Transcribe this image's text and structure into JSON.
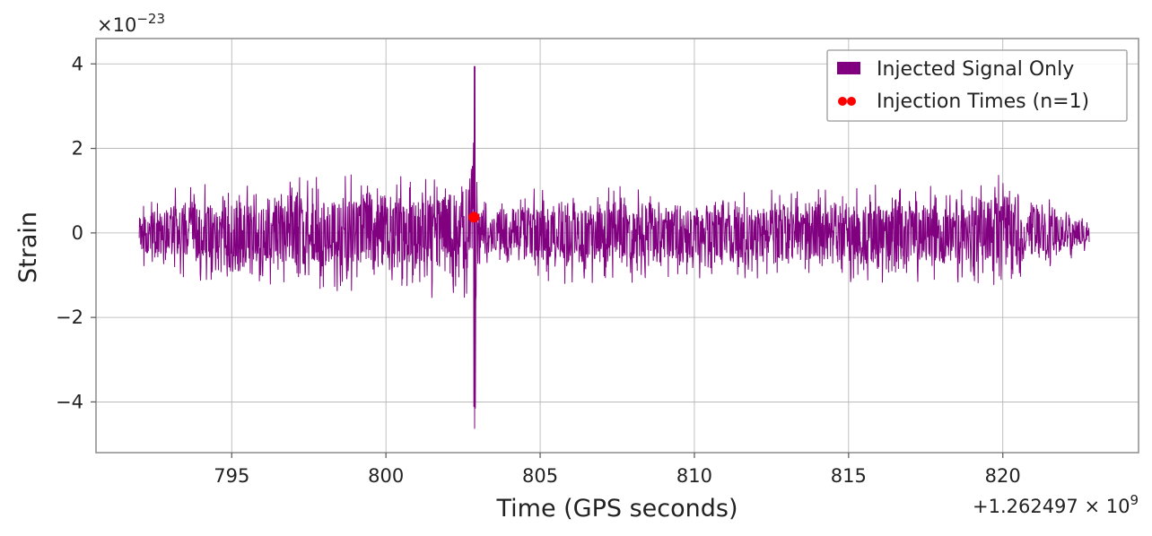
{
  "chart_data": {
    "type": "line",
    "xlabel": "Time (GPS seconds)",
    "ylabel": "Strain",
    "x_offset_text": "+1.262497 × 10",
    "x_offset_exponent": "9",
    "y_scale_text": "×10",
    "y_scale_exponent": "−23",
    "xlim": [
      790.6,
      824.4
    ],
    "ylim": [
      -5.2,
      4.6
    ],
    "xticks": [
      795,
      800,
      805,
      810,
      815,
      820
    ],
    "xtick_labels": [
      "795",
      "800",
      "805",
      "810",
      "815",
      "820"
    ],
    "yticks": [
      -4,
      -2,
      0,
      2,
      4
    ],
    "ytick_labels": [
      "−4",
      "−2",
      "0",
      "2",
      "4"
    ],
    "grid": true,
    "legend_position": "top-right",
    "series": [
      {
        "name": "Injected Signal Only",
        "color": "#800080",
        "x_range": [
          792.0,
          822.8
        ],
        "envelope": {
          "x": [
            792.0,
            795.0,
            800.0,
            802.0,
            802.5,
            802.7,
            802.8,
            802.88,
            802.95,
            803.0,
            805.0,
            810.0,
            815.0,
            820.0,
            822.8
          ],
          "upper": [
            1.0,
            1.4,
            1.6,
            1.8,
            2.1,
            2.5,
            3.2,
            4.15,
            2.0,
            0.8,
            1.2,
            1.1,
            1.2,
            1.5,
            0.5
          ],
          "lower": [
            -0.9,
            -1.5,
            -1.6,
            -1.7,
            -2.0,
            -2.3,
            -3.0,
            -4.75,
            -2.5,
            -0.8,
            -1.4,
            -1.3,
            -1.4,
            -1.5,
            -0.5
          ]
        }
      },
      {
        "name": "Injection Times (n=1)",
        "type": "scatter",
        "color": "#ff0000",
        "points": [
          {
            "x": 802.85,
            "y": 0.37
          }
        ]
      }
    ]
  }
}
